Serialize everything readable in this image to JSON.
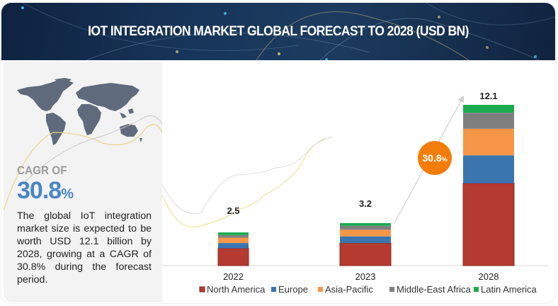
{
  "header": {
    "title": "IOT INTEGRATION MARKET GLOBAL FORECAST TO 2028 (USD BN)"
  },
  "left_panel": {
    "map_icon": "world-map-icon",
    "cagr_label": "CAGR OF",
    "cagr_value": "30.8",
    "cagr_unit": "%",
    "description": "The global IoT integration market size is expected to be worth USD 12.1 billion by 2028, growing at a CAGR of 30.8% during the forecast period."
  },
  "chart_data": {
    "type": "bar",
    "stacked": true,
    "title": "IOT INTEGRATION MARKET GLOBAL FORECAST TO 2028 (USD BN)",
    "xlabel": "",
    "ylabel": "USD BN",
    "categories": [
      "2022",
      "2023",
      "2028"
    ],
    "totals": [
      "2.5",
      "3.2",
      "12.1"
    ],
    "total_values": [
      2.5,
      3.2,
      12.1
    ],
    "series": [
      {
        "name": "North America",
        "color": "#b53a30",
        "values": [
          1.3,
          1.7,
          6.2
        ]
      },
      {
        "name": "Europe",
        "color": "#3a75b0",
        "values": [
          0.4,
          0.5,
          2.1
        ]
      },
      {
        "name": "Asia-Pacific",
        "color": "#f79646",
        "values": [
          0.4,
          0.5,
          2.0
        ]
      },
      {
        "name": "Middle-East Africa",
        "color": "#7f7f7f",
        "values": [
          0.2,
          0.3,
          1.2
        ]
      },
      {
        "name": "Latin America",
        "color": "#1aab4f",
        "values": [
          0.2,
          0.2,
          0.6
        ]
      }
    ],
    "ylim": [
      0,
      12.1
    ],
    "grid": false,
    "legend": "bottom",
    "annotation": {
      "text": "30.8",
      "unit": "%",
      "color": "#f47d0a",
      "meaning": "CAGR 2023-2028"
    }
  }
}
